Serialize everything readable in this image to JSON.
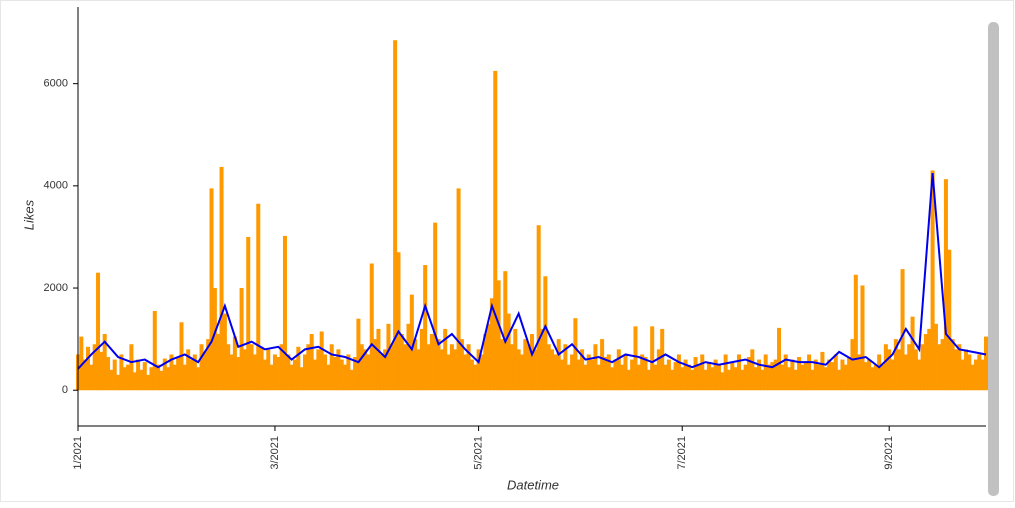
{
  "chart_data": {
    "type": "combo",
    "xlabel": "Datetime",
    "ylabel": "Likes",
    "xlim": [
      0,
      272
    ],
    "ylim": [
      -700,
      7500
    ],
    "xticks": [
      {
        "value": 0,
        "label": "1/2021"
      },
      {
        "value": 59,
        "label": "3/2021"
      },
      {
        "value": 120,
        "label": "5/2021"
      },
      {
        "value": 181,
        "label": "7/2021"
      },
      {
        "value": 243,
        "label": "9/2021"
      }
    ],
    "yticks": [
      0,
      2000,
      4000,
      6000
    ],
    "series": [
      {
        "type": "bar",
        "color": "#ff9900",
        "x": [
          0,
          1,
          2,
          3,
          4,
          5,
          6,
          7,
          8,
          9,
          10,
          11,
          12,
          13,
          14,
          15,
          16,
          17,
          18,
          19,
          20,
          21,
          22,
          23,
          24,
          25,
          26,
          27,
          28,
          29,
          30,
          31,
          32,
          33,
          34,
          35,
          36,
          37,
          38,
          39,
          40,
          41,
          42,
          43,
          44,
          45,
          46,
          47,
          48,
          49,
          50,
          51,
          52,
          53,
          54,
          55,
          56,
          57,
          58,
          59,
          60,
          61,
          62,
          63,
          64,
          65,
          66,
          67,
          68,
          69,
          70,
          71,
          72,
          73,
          74,
          75,
          76,
          77,
          78,
          79,
          80,
          81,
          82,
          83,
          84,
          85,
          86,
          87,
          88,
          89,
          90,
          91,
          92,
          93,
          94,
          95,
          96,
          97,
          98,
          99,
          100,
          101,
          102,
          103,
          104,
          105,
          106,
          107,
          108,
          109,
          110,
          111,
          112,
          113,
          114,
          115,
          116,
          117,
          118,
          119,
          120,
          121,
          122,
          123,
          124,
          125,
          126,
          127,
          128,
          129,
          130,
          131,
          132,
          133,
          134,
          135,
          136,
          137,
          138,
          139,
          140,
          141,
          142,
          143,
          144,
          145,
          146,
          147,
          148,
          149,
          150,
          151,
          152,
          153,
          154,
          155,
          156,
          157,
          158,
          159,
          160,
          161,
          162,
          163,
          164,
          165,
          166,
          167,
          168,
          169,
          170,
          171,
          172,
          173,
          174,
          175,
          176,
          177,
          178,
          179,
          180,
          181,
          182,
          183,
          184,
          185,
          186,
          187,
          188,
          189,
          190,
          191,
          192,
          193,
          194,
          195,
          196,
          197,
          198,
          199,
          200,
          201,
          202,
          203,
          204,
          205,
          206,
          207,
          208,
          209,
          210,
          211,
          212,
          213,
          214,
          215,
          216,
          217,
          218,
          219,
          220,
          221,
          222,
          223,
          224,
          225,
          226,
          227,
          228,
          229,
          230,
          231,
          232,
          233,
          234,
          235,
          236,
          237,
          238,
          239,
          240,
          241,
          242,
          243,
          244,
          245,
          246,
          247,
          248,
          249,
          250,
          251,
          252,
          253,
          254,
          255,
          256,
          257,
          258,
          259,
          260,
          261,
          262,
          263,
          264,
          265,
          266,
          267,
          268,
          269,
          270,
          271,
          272
        ],
        "values": [
          700,
          1050,
          600,
          850,
          500,
          900,
          2300,
          750,
          1100,
          650,
          400,
          600,
          300,
          700,
          450,
          500,
          900,
          350,
          600,
          400,
          550,
          300,
          450,
          1550,
          500,
          380,
          620,
          450,
          700,
          500,
          640,
          1330,
          500,
          800,
          600,
          700,
          450,
          900,
          750,
          1000,
          3950,
          2000,
          1100,
          4370,
          1500,
          900,
          700,
          1050,
          650,
          2000,
          800,
          3000,
          900,
          700,
          3650,
          850,
          600,
          800,
          500,
          700,
          650,
          900,
          3020,
          700,
          500,
          600,
          850,
          450,
          700,
          900,
          1100,
          600,
          800,
          1150,
          700,
          500,
          900,
          650,
          800,
          600,
          500,
          700,
          400,
          650,
          1400,
          900,
          800,
          700,
          2480,
          1000,
          1200,
          700,
          800,
          1300,
          900,
          6850,
          2700,
          1100,
          900,
          1300,
          1870,
          1000,
          800,
          1200,
          2450,
          900,
          1100,
          3280,
          1000,
          800,
          1200,
          700,
          900,
          800,
          3950,
          1000,
          700,
          900,
          600,
          500,
          800,
          700,
          1100,
          1300,
          1800,
          6250,
          2150,
          1000,
          2330,
          1500,
          900,
          1200,
          800,
          700,
          1000,
          900,
          1100,
          800,
          3230,
          1200,
          2230,
          900,
          800,
          700,
          1000,
          600,
          900,
          500,
          700,
          1410,
          600,
          800,
          500,
          700,
          600,
          900,
          500,
          1000,
          650,
          700,
          450,
          600,
          800,
          500,
          700,
          400,
          600,
          1250,
          500,
          700,
          650,
          400,
          1250,
          500,
          800,
          1200,
          500,
          600,
          400,
          550,
          700,
          450,
          600,
          500,
          400,
          650,
          500,
          700,
          400,
          550,
          450,
          600,
          500,
          350,
          700,
          400,
          550,
          450,
          700,
          400,
          500,
          650,
          800,
          450,
          600,
          400,
          700,
          500,
          550,
          600,
          1220,
          500,
          700,
          450,
          600,
          400,
          650,
          500,
          550,
          700,
          400,
          600,
          500,
          750,
          450,
          600,
          550,
          700,
          400,
          600,
          500,
          650,
          1000,
          2260,
          700,
          2050,
          550,
          600,
          450,
          500,
          700,
          500,
          900,
          800,
          600,
          1000,
          800,
          2370,
          700,
          900,
          1440,
          800,
          600,
          900,
          1100,
          1200,
          4300,
          1300,
          900,
          1000,
          4130,
          2750,
          1000,
          800,
          900,
          600,
          800,
          700,
          500,
          600,
          700,
          600,
          1050
        ]
      },
      {
        "type": "line",
        "color": "#0000ee",
        "x": [
          0,
          4,
          8,
          12,
          16,
          20,
          24,
          28,
          32,
          36,
          40,
          44,
          48,
          52,
          56,
          60,
          64,
          68,
          72,
          76,
          80,
          84,
          88,
          92,
          96,
          100,
          104,
          108,
          112,
          116,
          120,
          124,
          128,
          132,
          136,
          140,
          144,
          148,
          152,
          156,
          160,
          164,
          168,
          172,
          176,
          180,
          184,
          188,
          192,
          196,
          200,
          204,
          208,
          212,
          216,
          220,
          224,
          228,
          232,
          236,
          240,
          244,
          248,
          252,
          256,
          260,
          264,
          268,
          272
        ],
        "values": [
          420,
          700,
          950,
          650,
          550,
          600,
          450,
          600,
          700,
          550,
          950,
          1650,
          850,
          950,
          800,
          850,
          600,
          800,
          850,
          700,
          650,
          550,
          900,
          650,
          1150,
          800,
          1650,
          900,
          1100,
          800,
          550,
          1650,
          950,
          1500,
          700,
          1250,
          700,
          900,
          600,
          650,
          550,
          700,
          650,
          550,
          700,
          550,
          450,
          550,
          500,
          550,
          600,
          500,
          450,
          600,
          550,
          550,
          500,
          750,
          600,
          650,
          450,
          700,
          1200,
          800,
          4250,
          1100,
          800,
          750,
          700
        ]
      }
    ]
  }
}
